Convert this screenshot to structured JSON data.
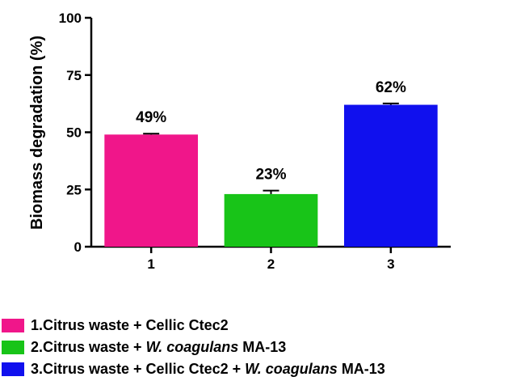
{
  "chart_data": {
    "type": "bar",
    "categories": [
      "1",
      "2",
      "3"
    ],
    "values": [
      49,
      23,
      62
    ],
    "errors": [
      0.4,
      1.5,
      0.6
    ],
    "data_labels": [
      "49%",
      "23%",
      "62%"
    ],
    "colors": [
      "#f0168a",
      "#18c418",
      "#1010ee"
    ],
    "ylabel": "Biomass degradation (%)",
    "xlabel": "",
    "ylim": [
      0,
      100
    ],
    "yticks": [
      0,
      25,
      50,
      75,
      100
    ],
    "grid": false,
    "legend_position": "bottom-left"
  },
  "legend": [
    {
      "prefix": "1.Citrus waste + Cellic Ctec2",
      "italic": "",
      "suffix": "",
      "color": "#f0168a"
    },
    {
      "prefix": "2.Citrus waste + ",
      "italic": "W. coagulans",
      "suffix": " MA-13",
      "color": "#18c418"
    },
    {
      "prefix": "3.Citrus waste + Cellic Ctec2 + ",
      "italic": "W. coagulans",
      "suffix": " MA-13",
      "color": "#1010ee"
    }
  ]
}
